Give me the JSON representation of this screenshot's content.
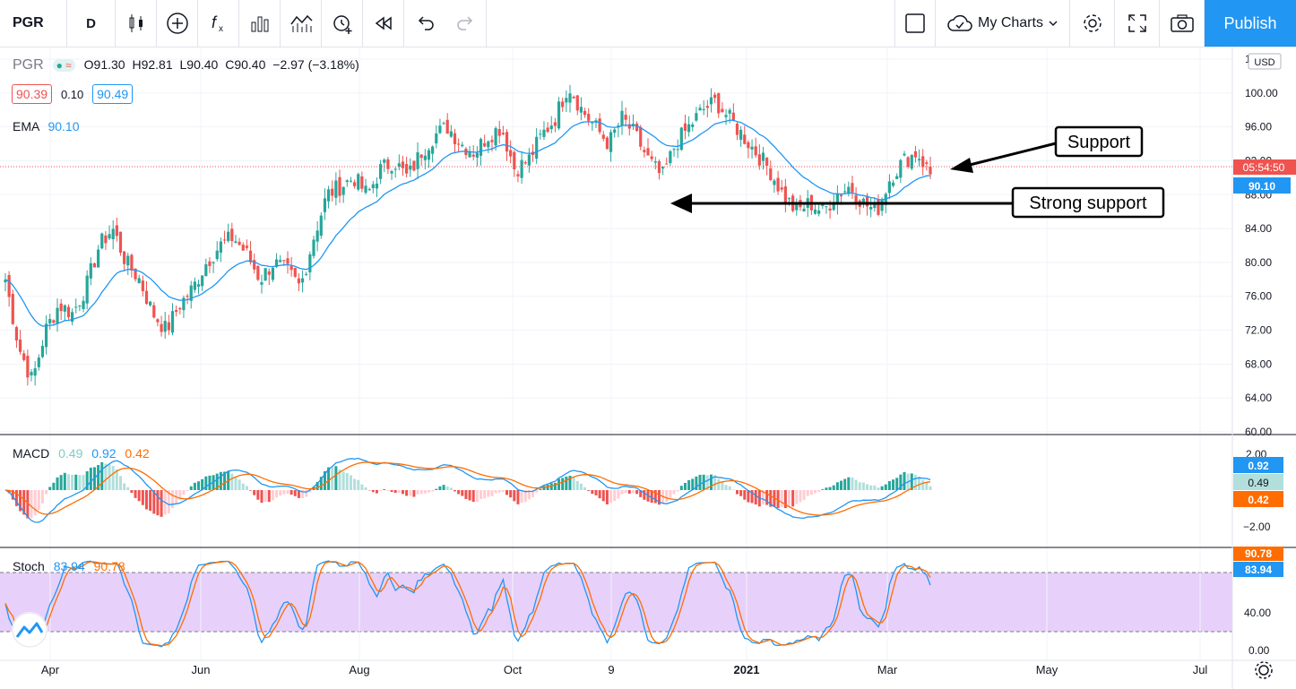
{
  "toolbar": {
    "symbol": "PGR",
    "interval": "D",
    "my_charts": "My Charts",
    "publish": "Publish",
    "icons": [
      "bar-style-icon",
      "add-compare-icon",
      "indicators-icon",
      "templates-icon",
      "bar-replay-icon",
      "alert-icon",
      "replay-icon",
      "undo-icon",
      "redo-icon"
    ]
  },
  "legend": {
    "symbol": "PGR",
    "open": "O91.30",
    "high": "H92.81",
    "low": "L90.40",
    "close": "C90.40",
    "change": "−2.97 (−3.18%)",
    "bid": "90.39",
    "spread": "0.10",
    "ask": "90.49",
    "ema_label": "EMA",
    "ema_value": "90.10",
    "macd_label": "MACD",
    "macd_hist": "0.49",
    "macd_line": "0.92",
    "macd_signal": "0.42",
    "stoch_label": "Stoch",
    "stoch_k": "83.94",
    "stoch_d": "90.78"
  },
  "price_axis": {
    "currency": "USD",
    "ticks": [
      "104.00",
      "100.00",
      "96.00",
      "92.00",
      "88.00",
      "84.00",
      "80.00",
      "76.00",
      "72.00",
      "68.00",
      "64.00",
      "60.00"
    ],
    "countdown": "05:54:50",
    "ema_tag": "90.10"
  },
  "macd_axis": {
    "ticks": [
      "2.00",
      "−2.00"
    ],
    "tags": [
      "0.92",
      "0.49",
      "0.42"
    ]
  },
  "stoch_axis": {
    "ticks": [
      "40.00",
      "0.00"
    ],
    "tags": [
      "90.78",
      "83.94"
    ]
  },
  "time_axis": {
    "labels": [
      "Apr",
      "Jun",
      "Aug",
      "Oct",
      "9",
      "2021",
      "Mar",
      "May",
      "Jul"
    ]
  },
  "annotations": {
    "support": "Support",
    "strong_support": "Strong support"
  },
  "colors": {
    "up": "#26a69a",
    "down": "#ef5350",
    "ema": "#2196f3",
    "signal": "#ff6d00",
    "stoch_band": "#e1c4f9",
    "accent": "#2196f3"
  },
  "chart_data": {
    "type": "candlestick",
    "y_range": [
      60,
      104
    ],
    "ema_last": 90.1,
    "last_close": 90.4,
    "support_level": 91,
    "strong_support_level": 86.8,
    "closes_approx": [
      78,
      70,
      66,
      72,
      75,
      74,
      77,
      82,
      84,
      80,
      78,
      74,
      72,
      75,
      77,
      80,
      82,
      83,
      81,
      78,
      80,
      79,
      77,
      83,
      88,
      89,
      90,
      88,
      91,
      92,
      90,
      93,
      95,
      96,
      94,
      93,
      95,
      96,
      91,
      92,
      95,
      97,
      101,
      98,
      96,
      94,
      97,
      95,
      92,
      90,
      94,
      96,
      98,
      99,
      97,
      95,
      93,
      91,
      88,
      86,
      87,
      86,
      88,
      89,
      87,
      86,
      90,
      92,
      93,
      90.4
    ]
  }
}
